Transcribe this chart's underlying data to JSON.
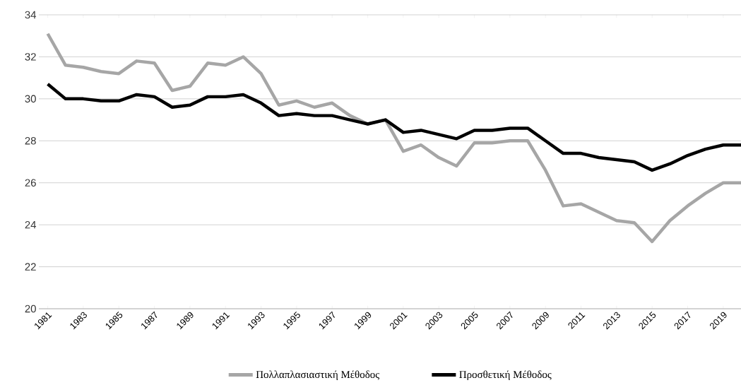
{
  "chart_data": {
    "type": "line",
    "categories": [
      "1981",
      null,
      "1983",
      null,
      "1985",
      null,
      "1987",
      null,
      "1989",
      null,
      "1991",
      null,
      "1993",
      null,
      "1995",
      null,
      "1997",
      null,
      "1999",
      null,
      "2001",
      null,
      "2003",
      null,
      "2005",
      null,
      "2007",
      null,
      "2009",
      null,
      "2011",
      null,
      "2013",
      null,
      "2015",
      null,
      "2017",
      null,
      "2019",
      null
    ],
    "series": [
      {
        "name": "Πολλαπλασιαστική Μέθοδος",
        "color": "#a6a6a6",
        "values": [
          33.1,
          31.6,
          31.5,
          31.3,
          31.2,
          31.8,
          31.7,
          30.4,
          30.6,
          31.7,
          31.6,
          32.0,
          31.2,
          29.7,
          29.9,
          29.6,
          29.8,
          29.2,
          28.8,
          29.0,
          27.5,
          27.8,
          27.2,
          26.8,
          27.9,
          27.9,
          28.0,
          28.0,
          26.6,
          24.9,
          25.0,
          24.6,
          24.2,
          24.1,
          23.2,
          24.2,
          24.9,
          25.5,
          26.0,
          26.0
        ]
      },
      {
        "name": "Προσθετική Μέθοδος",
        "color": "#000000",
        "values": [
          30.7,
          30.0,
          30.0,
          29.9,
          29.9,
          30.2,
          30.1,
          29.6,
          29.7,
          30.1,
          30.1,
          30.2,
          29.8,
          29.2,
          29.3,
          29.2,
          29.2,
          29.0,
          28.8,
          29.0,
          28.4,
          28.5,
          28.3,
          28.1,
          28.5,
          28.5,
          28.6,
          28.6,
          28.0,
          27.4,
          27.4,
          27.2,
          27.1,
          27.0,
          26.6,
          26.9,
          27.3,
          27.6,
          27.8,
          27.8
        ]
      }
    ],
    "ylim": [
      20,
      34
    ],
    "yticks": [
      20,
      22,
      24,
      26,
      28,
      30,
      32,
      34
    ],
    "grid": "y",
    "legend": "bottom",
    "marker": "none",
    "line_style": "solid"
  }
}
